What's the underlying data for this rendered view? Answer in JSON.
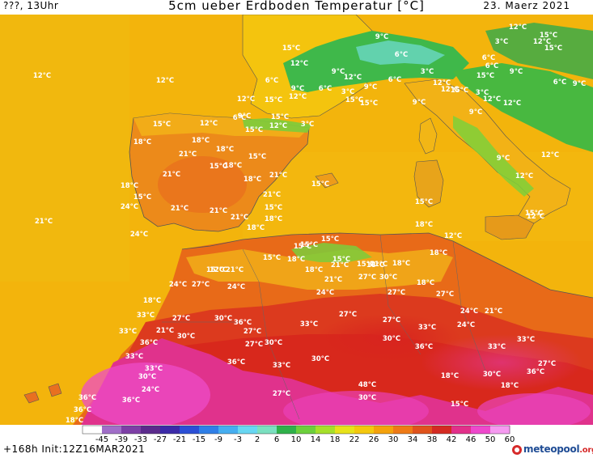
{
  "header": {
    "left": "???, 13Uhr",
    "title": "5cm ueber Erdboden Temperatur [°C]",
    "date": "23. Maerz 2021"
  },
  "legend": {
    "ticks": [
      "-45",
      "-39",
      "-33",
      "-27",
      "-21",
      "-15",
      "-9",
      "-3",
      "2",
      "6",
      "10",
      "14",
      "18",
      "22",
      "26",
      "30",
      "34",
      "38",
      "42",
      "46",
      "50",
      "60"
    ],
    "colors": [
      "#ffffff",
      "#a06ec8",
      "#7d3fa6",
      "#5a2a8c",
      "#3b2aa8",
      "#2b4fd6",
      "#2f7fe8",
      "#45aef0",
      "#68d7f2",
      "#7be0c0",
      "#2fb14a",
      "#6cd03c",
      "#a6e02a",
      "#e8e21a",
      "#f4c80e",
      "#f4a20c",
      "#ee7a16",
      "#e0531c",
      "#d42a22",
      "#e2308a",
      "#ee48cc",
      "#f59af0"
    ]
  },
  "footer": {
    "run_info": "+168h Init:12Z16MAR2021",
    "logo_main": "meteopool",
    "logo_tld": ".org"
  },
  "labels": [
    {
      "t": "12°C",
      "c": "n"
    },
    {
      "t": "12°C",
      "c": "n"
    },
    {
      "t": "15°C",
      "c": "n"
    },
    {
      "t": "12°C",
      "c": "n"
    },
    {
      "t": "12°C",
      "c": "n"
    },
    {
      "t": "15°C",
      "c": "n"
    },
    {
      "t": "9°C",
      "c": "n"
    },
    {
      "t": "6°C",
      "c": "n"
    },
    {
      "t": "3°C",
      "c": "n"
    },
    {
      "t": "6°C",
      "c": "n"
    },
    {
      "t": "9°C",
      "c": "n"
    },
    {
      "t": "3°C",
      "c": "n"
    },
    {
      "t": "6°C",
      "c": "n"
    },
    {
      "t": "9°C",
      "c": "n"
    },
    {
      "t": "6°C",
      "c": "n"
    },
    {
      "t": "3°C",
      "c": "n"
    },
    {
      "t": "6°C",
      "c": "n"
    },
    {
      "t": "12°C",
      "c": "n"
    },
    {
      "t": "15°C",
      "c": "n"
    },
    {
      "t": "9°C",
      "c": "n"
    },
    {
      "t": "6°C",
      "c": "n"
    },
    {
      "t": "9°C",
      "c": "n"
    },
    {
      "t": "3°C",
      "c": "n"
    },
    {
      "t": "12°C",
      "c": "n"
    },
    {
      "t": "15°C",
      "c": "n"
    },
    {
      "t": "9°C",
      "c": "n"
    },
    {
      "t": "12°C",
      "c": "n"
    },
    {
      "t": "12°C",
      "c": "n"
    },
    {
      "t": "15°C",
      "c": "n"
    },
    {
      "t": "15°C",
      "c": "n"
    },
    {
      "t": "6°C",
      "c": "n"
    },
    {
      "t": "9°C",
      "c": "n"
    },
    {
      "t": "12°C",
      "c": "n"
    },
    {
      "t": "12°C",
      "c": "n"
    },
    {
      "t": "12°C",
      "c": "n"
    },
    {
      "t": "15°C",
      "c": "n"
    },
    {
      "t": "12°C",
      "c": "n"
    },
    {
      "t": "9°C",
      "c": "n"
    },
    {
      "t": "15°C",
      "c": "n"
    },
    {
      "t": "12°C",
      "c": "n"
    },
    {
      "t": "9°C",
      "c": "n"
    },
    {
      "t": "12°C",
      "c": "n"
    },
    {
      "t": "15°C",
      "c": "n"
    },
    {
      "t": "12°C",
      "c": "n"
    },
    {
      "t": "9°C",
      "c": "n"
    },
    {
      "t": "6°C",
      "c": "n"
    },
    {
      "t": "3°C",
      "c": "n"
    },
    {
      "t": "15°C",
      "c": "n"
    },
    {
      "t": "12°C",
      "c": "n"
    },
    {
      "t": "15°C",
      "c": "n"
    },
    {
      "t": "12°C",
      "c": "n"
    },
    {
      "t": "15°C",
      "c": "n"
    },
    {
      "t": "18°C",
      "c": "n"
    },
    {
      "t": "18°C",
      "c": "n"
    },
    {
      "t": "21°C",
      "c": "n"
    },
    {
      "t": "18°C",
      "c": "n"
    },
    {
      "t": "15°C",
      "c": "n"
    },
    {
      "t": "18°C",
      "c": "n"
    },
    {
      "t": "18°C",
      "c": "n"
    },
    {
      "t": "21°C",
      "c": "n"
    },
    {
      "t": "21°C",
      "c": "n"
    },
    {
      "t": "15°C",
      "c": "n"
    },
    {
      "t": "15°C",
      "c": "n"
    },
    {
      "t": "18°C",
      "c": "n"
    },
    {
      "t": "15°C",
      "c": "n"
    },
    {
      "t": "21°C",
      "c": "n"
    },
    {
      "t": "24°C",
      "c": "n"
    },
    {
      "t": "15°C",
      "c": "n"
    },
    {
      "t": "21°C",
      "c": "n"
    },
    {
      "t": "21°C",
      "c": "n"
    },
    {
      "t": "18°C",
      "c": "n"
    },
    {
      "t": "21°C",
      "c": "n"
    },
    {
      "t": "18°C",
      "c": "n"
    },
    {
      "t": "21°C",
      "c": "n"
    },
    {
      "t": "24°C",
      "c": "n"
    },
    {
      "t": "15°C",
      "c": "n"
    },
    {
      "t": "18°C",
      "c": "n"
    },
    {
      "t": "12°C",
      "c": "n"
    },
    {
      "t": "15°C",
      "c": "n"
    },
    {
      "t": "15°C",
      "c": "n"
    },
    {
      "t": "15°C",
      "c": "n"
    },
    {
      "t": "15°C",
      "c": "n"
    },
    {
      "t": "18°C",
      "c": "n"
    },
    {
      "t": "12°C",
      "c": "n"
    },
    {
      "t": "21°C",
      "c": "n"
    },
    {
      "t": "15°C",
      "c": "n"
    },
    {
      "t": "18°C",
      "c": "n"
    },
    {
      "t": "18°C",
      "c": "n"
    },
    {
      "t": "21°C",
      "c": "n"
    },
    {
      "t": "15°C",
      "c": "n"
    },
    {
      "t": "18°C",
      "c": "n"
    },
    {
      "t": "18°C",
      "c": "n"
    },
    {
      "t": "21°C",
      "c": "n"
    },
    {
      "t": "15°C",
      "c": "n"
    },
    {
      "t": "21°C",
      "c": "n"
    },
    {
      "t": "27°C",
      "c": "n"
    },
    {
      "t": "30°C",
      "c": "n"
    },
    {
      "t": "24°C",
      "c": "n"
    },
    {
      "t": "27°C",
      "c": "n"
    },
    {
      "t": "24°C",
      "c": "n"
    },
    {
      "t": "24°C",
      "c": "n"
    },
    {
      "t": "27°C",
      "c": "n"
    },
    {
      "t": "18°C",
      "c": "n"
    },
    {
      "t": "27°C",
      "c": "n"
    },
    {
      "t": "24°C",
      "c": "n"
    },
    {
      "t": "21°C",
      "c": "n"
    },
    {
      "t": "18°C",
      "c": "n"
    },
    {
      "t": "33°C",
      "c": "n"
    },
    {
      "t": "27°C",
      "c": "n"
    },
    {
      "t": "30°C",
      "c": "n"
    },
    {
      "t": "36°C",
      "c": "n"
    },
    {
      "t": "21°C",
      "c": "n"
    },
    {
      "t": "24°C",
      "c": "n"
    },
    {
      "t": "27°C",
      "c": "n"
    },
    {
      "t": "27°C",
      "c": "n"
    },
    {
      "t": "33°C",
      "c": "n"
    },
    {
      "t": "33°C",
      "c": "n"
    },
    {
      "t": "30°C",
      "c": "n"
    },
    {
      "t": "33°C",
      "c": "n"
    },
    {
      "t": "30°C",
      "c": "n"
    },
    {
      "t": "27°C",
      "c": "n"
    },
    {
      "t": "27°C",
      "c": "n"
    },
    {
      "t": "30°C",
      "c": "n"
    },
    {
      "t": "36°C",
      "c": "n"
    },
    {
      "t": "33°C",
      "c": "n"
    },
    {
      "t": "36°C",
      "c": "n"
    },
    {
      "t": "33°C",
      "c": "n"
    },
    {
      "t": "30°C",
      "c": "n"
    },
    {
      "t": "33°C",
      "c": "n"
    },
    {
      "t": "30°C",
      "c": "n"
    },
    {
      "t": "33°C",
      "c": "n"
    },
    {
      "t": "36°C",
      "c": "n"
    },
    {
      "t": "33°C",
      "c": "n"
    },
    {
      "t": "36°C",
      "c": "n"
    },
    {
      "t": "30°C",
      "c": "n"
    },
    {
      "t": "27°C",
      "c": "n"
    },
    {
      "t": "18°C",
      "c": "n"
    },
    {
      "t": "18°C",
      "c": "n"
    },
    {
      "t": "24°C",
      "c": "n"
    },
    {
      "t": "27°C",
      "c": "n"
    },
    {
      "t": "48°C",
      "c": "n"
    },
    {
      "t": "30°C",
      "c": "n"
    },
    {
      "t": "36°C",
      "c": "n"
    },
    {
      "t": "36°C",
      "c": "n"
    },
    {
      "t": "36°C",
      "c": "n"
    },
    {
      "t": "18°C",
      "c": "n"
    },
    {
      "t": "15°C",
      "c": "n"
    }
  ]
}
